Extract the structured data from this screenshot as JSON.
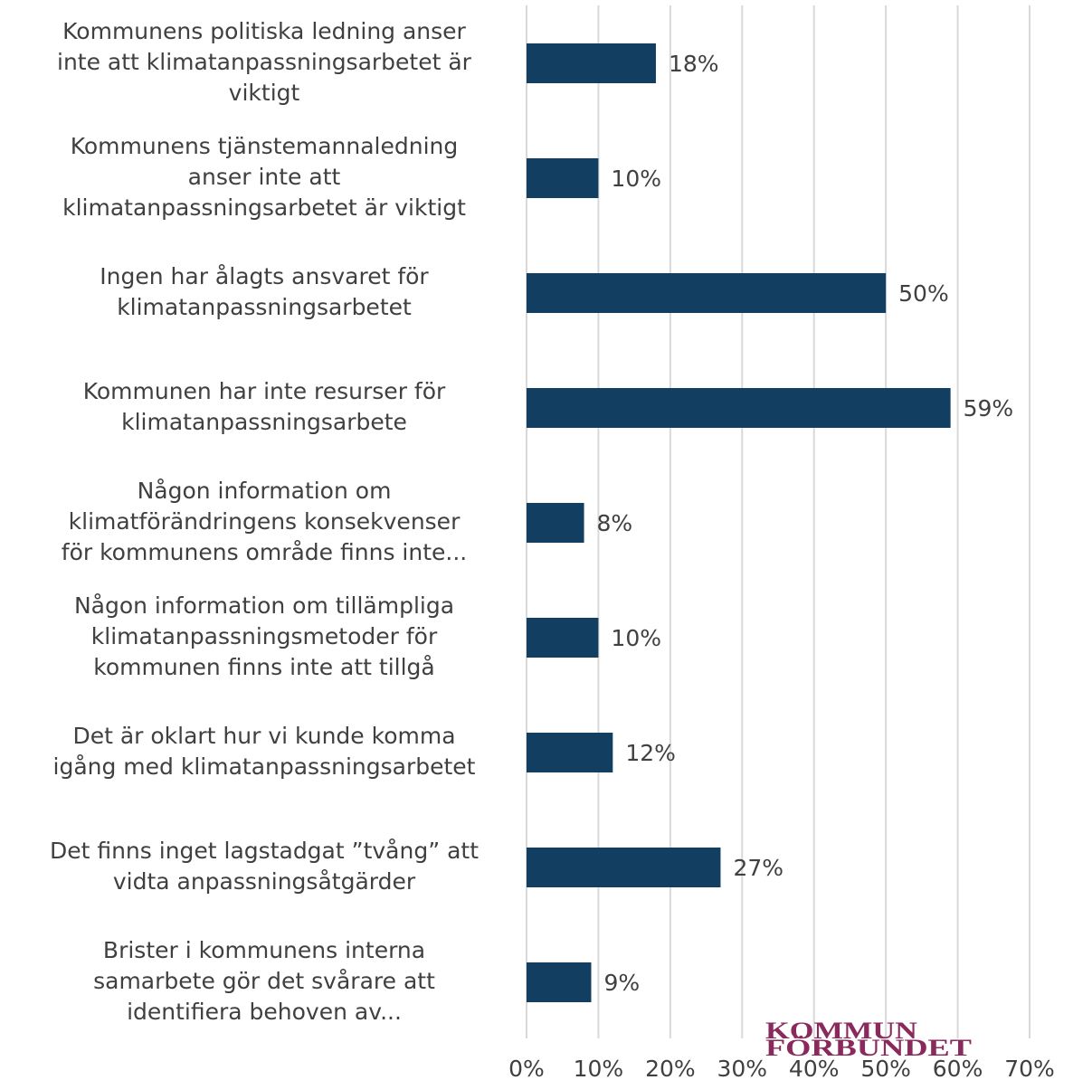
{
  "chart_data": {
    "type": "bar",
    "orientation": "horizontal",
    "categories": [
      [
        "Kommunens politiska ledning anser",
        "inte att klimatanpassningsarbetet är",
        "viktigt"
      ],
      [
        "Kommunens tjänstemannaledning",
        "anser inte att",
        "klimatanpassningsarbetet är viktigt"
      ],
      [
        "Ingen har ålagts ansvaret för",
        "klimatanpassningsarbetet"
      ],
      [
        "Kommunen har inte resurser för",
        "klimatanpassningsarbete"
      ],
      [
        "Någon information om",
        "klimatförändringens konsekvenser",
        "för kommunens område finns inte..."
      ],
      [
        "Någon information om tillämpliga",
        "klimatanpassningsmetoder för",
        "kommunen finns inte att tillgå"
      ],
      [
        "Det är oklart hur vi kunde komma",
        "igång med klimatanpassningsarbetet"
      ],
      [
        "Det finns inget lagstadgat ”tvång” att",
        "vidta anpassningsåtgärder"
      ],
      [
        "Brister i kommunens interna",
        "samarbete gör det svårare att",
        "identifiera behoven av..."
      ]
    ],
    "values": [
      18,
      10,
      50,
      59,
      8,
      10,
      12,
      27,
      9
    ],
    "value_labels": [
      "18%",
      "10%",
      "50%",
      "59%",
      "8%",
      "10%",
      "12%",
      "27%",
      "9%"
    ],
    "color": "#123f61",
    "xlim": [
      0,
      70
    ],
    "xticks": [
      {
        "value": 0,
        "label": "0%"
      },
      {
        "value": 10,
        "label": "10%"
      },
      {
        "value": 20,
        "label": "20%"
      },
      {
        "value": 30,
        "label": "30%"
      },
      {
        "value": 40,
        "label": "40%"
      },
      {
        "value": 50,
        "label": "50%"
      },
      {
        "value": 60,
        "label": "60%"
      },
      {
        "value": 70,
        "label": "70%"
      }
    ],
    "grid": true,
    "logo": [
      "KOMMUN",
      "FÖRBUNDET"
    ]
  }
}
